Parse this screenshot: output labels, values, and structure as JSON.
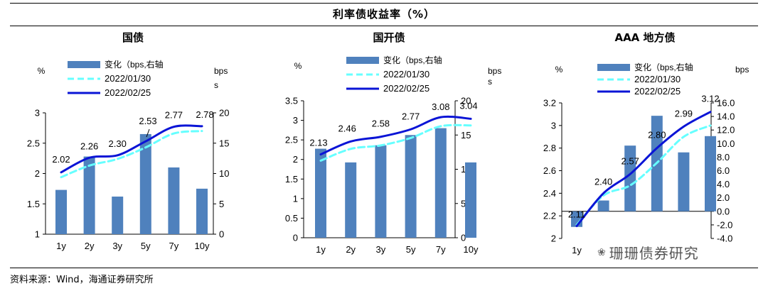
{
  "title": "利率债收益率（%）",
  "source": "资料来源：Wind，海通证券研究所",
  "watermark": "珊珊债券研究",
  "colors": {
    "bar": "#4f81bd",
    "line_0130": "#66ffff",
    "line_0225": "#0a14d6"
  },
  "legend": {
    "bar": "变化（bps,右轴",
    "line1": "2022/01/30",
    "line2": "2022/02/25"
  },
  "chart_data": [
    {
      "type": "bar+line",
      "title": "国债",
      "left_unit": "%",
      "right_unit": "bps\ns",
      "categories": [
        "1y",
        "2y",
        "3y",
        "5y",
        "7y",
        "10y"
      ],
      "left_ticks": [
        "1",
        "1.5",
        "2",
        "2.5",
        "3"
      ],
      "right_ticks": [
        "0",
        "5",
        "10",
        "15",
        "20"
      ],
      "ylim_left": [
        1,
        3
      ],
      "ylim_right": [
        0,
        20
      ],
      "series": [
        {
          "name": "变化（bps,右轴",
          "kind": "bar",
          "axis": "right",
          "values": [
            7.3,
            12.8,
            6.2,
            16.5,
            11.0,
            7.5
          ]
        },
        {
          "name": "2022/01/30",
          "kind": "line",
          "dashed": true,
          "axis": "left",
          "values": [
            1.94,
            2.13,
            2.24,
            2.43,
            2.66,
            2.7
          ]
        },
        {
          "name": "2022/02/25",
          "kind": "line",
          "dashed": false,
          "axis": "left",
          "values": [
            2.02,
            2.26,
            2.3,
            2.53,
            2.77,
            2.78
          ]
        }
      ],
      "data_labels": [
        "2.02",
        "2.26",
        "2.30",
        "2.53",
        "2.77",
        "2.78"
      ]
    },
    {
      "type": "bar+line",
      "title": "国开债",
      "left_unit": "%",
      "right_unit": "bps\ns",
      "categories": [
        "1y",
        "2y",
        "3y",
        "5y",
        "7y",
        "10y"
      ],
      "left_ticks": [
        "0",
        "0.5",
        "1",
        "1.5",
        "2",
        "2.5",
        "3",
        "3.5"
      ],
      "right_ticks": [
        "0",
        "5",
        "10",
        "15",
        "20"
      ],
      "ylim_left": [
        0,
        3.5
      ],
      "ylim_right": [
        0,
        20
      ],
      "series": [
        {
          "name": "变化（bps,右轴",
          "kind": "bar",
          "axis": "right",
          "values": [
            13.0,
            11.0,
            13.5,
            15.0,
            16.0,
            11.0
          ]
        },
        {
          "name": "2022/01/30",
          "kind": "line",
          "dashed": true,
          "axis": "left",
          "values": [
            1.97,
            2.27,
            2.36,
            2.55,
            2.85,
            2.87
          ]
        },
        {
          "name": "2022/02/25",
          "kind": "line",
          "dashed": false,
          "axis": "left",
          "values": [
            2.13,
            2.46,
            2.58,
            2.77,
            3.08,
            3.04
          ]
        }
      ],
      "data_labels": [
        "2.13",
        "2.46",
        "2.58",
        "2.77",
        "3.08",
        "3.04"
      ]
    },
    {
      "type": "bar+line",
      "title": "AAA 地方债",
      "left_unit": "%",
      "right_unit": "bps",
      "categories": [
        "1y",
        "",
        "",
        "",
        "",
        ""
      ],
      "left_ticks": [
        "2",
        "2.2",
        "2.4",
        "2.6",
        "2.8",
        "3",
        "3.2"
      ],
      "right_ticks": [
        "-4.0",
        "-2.0",
        "0.0",
        "2.0",
        "4.0",
        "6.0",
        "8.0",
        "10.0",
        "12.0",
        "14.0",
        "16.0"
      ],
      "ylim_left": [
        2,
        3.2
      ],
      "ylim_right": [
        -4,
        16
      ],
      "series": [
        {
          "name": "变化（bps,右轴",
          "kind": "bar",
          "axis": "right",
          "values": [
            -2.3,
            1.6,
            9.7,
            14.1,
            8.7,
            11.1
          ]
        },
        {
          "name": "2022/01/30",
          "kind": "line",
          "dashed": true,
          "axis": "left",
          "values": [
            2.12,
            2.38,
            2.47,
            2.67,
            2.9,
            3.0
          ]
        },
        {
          "name": "2022/02/25",
          "kind": "line",
          "dashed": false,
          "axis": "left",
          "values": [
            2.11,
            2.4,
            2.57,
            2.8,
            2.99,
            3.12
          ]
        }
      ],
      "data_labels": [
        "2.11",
        "2.40",
        "2.57",
        "2.80",
        "2.99",
        "3.12"
      ]
    }
  ]
}
